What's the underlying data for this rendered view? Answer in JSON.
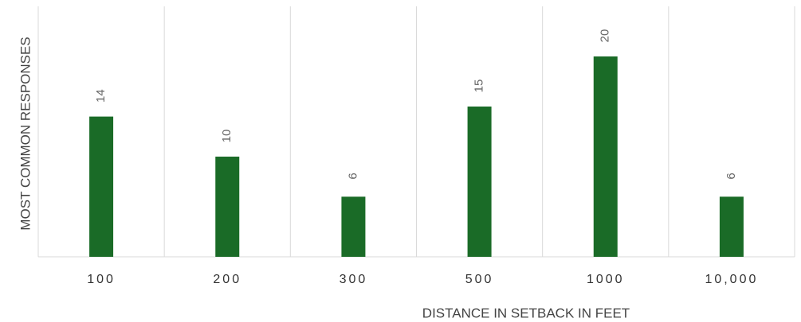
{
  "chart_data": {
    "type": "bar",
    "x_label": "DISTANCE IN SETBACK IN FEET",
    "y_label": "MOST COMMON RESPONSES",
    "categories": [
      "100",
      "200",
      "300",
      "500",
      "1000",
      "10,000"
    ],
    "values": [
      14,
      10,
      6,
      15,
      20,
      6
    ],
    "color": "#1a6b27",
    "ylim": [
      0,
      25
    ],
    "grid": true
  }
}
